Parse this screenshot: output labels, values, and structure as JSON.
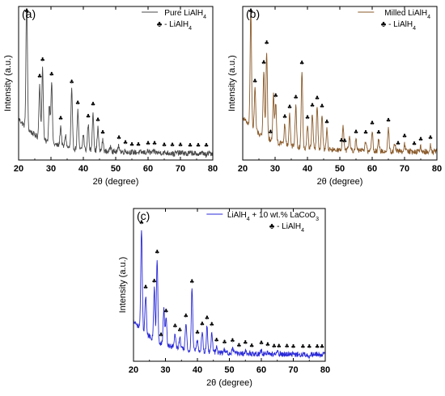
{
  "figure": {
    "chart_data": [
      {
        "type": "line",
        "panel_label": "(a)",
        "legend": [
          "Pure LiAlH4",
          "♣ - LiAlH4"
        ],
        "xlabel": "2θ (degree)",
        "ylabel": "Intensity (a.u.)",
        "xlim": [
          20,
          80
        ],
        "x_ticks": [
          "20",
          "30",
          "40",
          "50",
          "60",
          "70",
          "80"
        ],
        "grid": false,
        "line_color": "#4a4a4a",
        "series": [
          {
            "name": "Pure LiAlH4",
            "peaks": [
              {
                "x": 22.5,
                "y": 0.93
              },
              {
                "x": 26.5,
                "y": 0.4
              },
              {
                "x": 27.4,
                "y": 0.52
              },
              {
                "x": 29.5,
                "y": 0.3
              },
              {
                "x": 30.2,
                "y": 0.45
              },
              {
                "x": 33.0,
                "y": 0.18
              },
              {
                "x": 34.5,
                "y": 0.13
              },
              {
                "x": 36.4,
                "y": 0.43
              },
              {
                "x": 38.3,
                "y": 0.3
              },
              {
                "x": 40.0,
                "y": 0.15
              },
              {
                "x": 41.5,
                "y": 0.22
              },
              {
                "x": 43.0,
                "y": 0.3
              },
              {
                "x": 44.5,
                "y": 0.2
              },
              {
                "x": 46.0,
                "y": 0.12
              },
              {
                "x": 48.5,
                "y": 0.09
              },
              {
                "x": 51.0,
                "y": 0.09
              },
              {
                "x": 53.0,
                "y": 0.06
              },
              {
                "x": 55.0,
                "y": 0.05
              },
              {
                "x": 57.0,
                "y": 0.05
              },
              {
                "x": 60.0,
                "y": 0.06
              },
              {
                "x": 62.0,
                "y": 0.06
              },
              {
                "x": 65.0,
                "y": 0.05
              },
              {
                "x": 68.0,
                "y": 0.04
              },
              {
                "x": 72.0,
                "y": 0.04
              },
              {
                "x": 75.0,
                "y": 0.03
              },
              {
                "x": 78.0,
                "y": 0.03
              }
            ],
            "markers": [
              22.5,
              26.5,
              27.4,
              30.2,
              33.0,
              36.4,
              38.3,
              41.5,
              43.0,
              44.5,
              46.0,
              51.0,
              53.0,
              55.0,
              57.0,
              60.0,
              62.0,
              65.0,
              67.5,
              70.0,
              73.0,
              75.5,
              78.0
            ]
          }
        ]
      },
      {
        "type": "line",
        "panel_label": "(b)",
        "legend": [
          "Milled LiAlH4",
          "♣ - LiAlH4"
        ],
        "xlabel": "2θ (degree)",
        "ylabel": "Intensity (a.u.)",
        "xlim": [
          20,
          80
        ],
        "x_ticks": [
          "20",
          "30",
          "40",
          "50",
          "60",
          "70",
          "80"
        ],
        "grid": false,
        "line_color": "#8a5a2a",
        "series": [
          {
            "name": "Milled LiAlH4",
            "peaks": [
              {
                "x": 22.5,
                "y": 0.8
              },
              {
                "x": 23.8,
                "y": 0.32
              },
              {
                "x": 26.5,
                "y": 0.48
              },
              {
                "x": 27.4,
                "y": 0.62
              },
              {
                "x": 29.5,
                "y": 0.35
              },
              {
                "x": 30.2,
                "y": 0.3
              },
              {
                "x": 33.0,
                "y": 0.18
              },
              {
                "x": 34.5,
                "y": 0.25
              },
              {
                "x": 36.4,
                "y": 0.32
              },
              {
                "x": 38.3,
                "y": 0.55
              },
              {
                "x": 40.0,
                "y": 0.2
              },
              {
                "x": 41.5,
                "y": 0.28
              },
              {
                "x": 43.0,
                "y": 0.33
              },
              {
                "x": 44.5,
                "y": 0.28
              },
              {
                "x": 46.0,
                "y": 0.18
              },
              {
                "x": 51.0,
                "y": 0.2
              },
              {
                "x": 53.0,
                "y": 0.14
              },
              {
                "x": 55.0,
                "y": 0.12
              },
              {
                "x": 58.0,
                "y": 0.12
              },
              {
                "x": 60.0,
                "y": 0.18
              },
              {
                "x": 62.0,
                "y": 0.12
              },
              {
                "x": 65.0,
                "y": 0.2
              },
              {
                "x": 67.0,
                "y": 0.1
              },
              {
                "x": 70.0,
                "y": 0.1
              },
              {
                "x": 75.0,
                "y": 0.08
              },
              {
                "x": 78.0,
                "y": 0.09
              }
            ],
            "markers": [
              22.5,
              23.8,
              26.5,
              27.4,
              28.6,
              30.2,
              33.0,
              34.5,
              36.4,
              38.3,
              40.0,
              41.5,
              43.0,
              44.5,
              46.0,
              50.5,
              51.5,
              55.0,
              58.0,
              60.0,
              62.0,
              65.0,
              68.0,
              70.0,
              73.0,
              75.0,
              78.0
            ]
          }
        ]
      },
      {
        "type": "line",
        "panel_label": "(c)",
        "legend": [
          "LiAlH4 + 10 wt.% LaCoO3",
          "♣ - LiAlH4"
        ],
        "xlabel": "2θ (degree)",
        "ylabel": "Intensity (a.u.)",
        "xlim": [
          20,
          80
        ],
        "x_ticks": [
          "20",
          "30",
          "40",
          "50",
          "60",
          "70",
          "80"
        ],
        "grid": false,
        "line_color": "#2a2ad8",
        "series": [
          {
            "name": "LiAlH4 + 10 wt.% LaCoO3",
            "peaks": [
              {
                "x": 22.5,
                "y": 0.7
              },
              {
                "x": 23.8,
                "y": 0.3
              },
              {
                "x": 26.5,
                "y": 0.38
              },
              {
                "x": 27.4,
                "y": 0.58
              },
              {
                "x": 29.5,
                "y": 0.28
              },
              {
                "x": 30.2,
                "y": 0.22
              },
              {
                "x": 33.0,
                "y": 0.14
              },
              {
                "x": 34.5,
                "y": 0.12
              },
              {
                "x": 36.4,
                "y": 0.22
              },
              {
                "x": 38.3,
                "y": 0.45
              },
              {
                "x": 40.0,
                "y": 0.12
              },
              {
                "x": 41.5,
                "y": 0.18
              },
              {
                "x": 43.0,
                "y": 0.22
              },
              {
                "x": 44.5,
                "y": 0.18
              },
              {
                "x": 46.0,
                "y": 0.08
              },
              {
                "x": 48.5,
                "y": 0.07
              },
              {
                "x": 51.0,
                "y": 0.08
              },
              {
                "x": 55.0,
                "y": 0.07
              },
              {
                "x": 60.0,
                "y": 0.07
              },
              {
                "x": 62.0,
                "y": 0.06
              },
              {
                "x": 65.0,
                "y": 0.06
              },
              {
                "x": 70.0,
                "y": 0.05
              },
              {
                "x": 75.0,
                "y": 0.04
              },
              {
                "x": 78.0,
                "y": 0.05
              }
            ],
            "markers": [
              22.5,
              23.8,
              26.5,
              27.4,
              28.6,
              30.2,
              33.0,
              34.5,
              36.4,
              38.3,
              40.0,
              41.5,
              43.0,
              44.5,
              46.0,
              48.5,
              51.0,
              53.0,
              55.0,
              57.0,
              60.0,
              62.0,
              64.0,
              65.5,
              68.0,
              70.0,
              73.0,
              75.0,
              77.5,
              79.0
            ]
          }
        ]
      }
    ]
  }
}
